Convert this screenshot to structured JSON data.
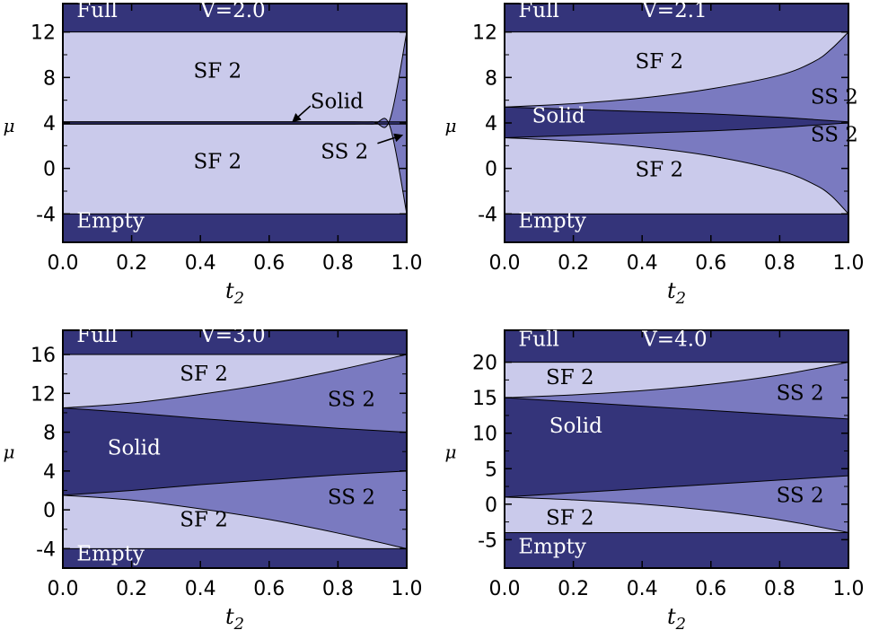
{
  "colors": {
    "dark": "#34347a",
    "medium": "#7a7ac0",
    "light": "#cacaeb",
    "white_text": "#ffffff",
    "black_text": "#000000"
  },
  "chart_data": [
    {
      "type": "area",
      "title": "V=2.0",
      "xlabel": "t2",
      "ylabel": "μ",
      "xlim": [
        0.0,
        1.0
      ],
      "ylim": [
        -6.5,
        14.5
      ],
      "xticks": [
        "0.0",
        "0.2",
        "0.4",
        "0.6",
        "0.8",
        "1.0"
      ],
      "yticks": [
        -4,
        0,
        4,
        8,
        12
      ],
      "labels": {
        "full": "Full",
        "empty": "Empty",
        "sf_upper": "SF 2",
        "sf_lower": "SF 2",
        "solid": "Solid",
        "ss": "SS 2"
      },
      "boundaries": {
        "empty_top": -4,
        "full_bottom": 12,
        "t2": [
          0.0,
          0.2,
          0.4,
          0.6,
          0.8,
          0.9,
          0.95,
          1.0
        ],
        "solid_top": [
          4.1,
          4.1,
          4.1,
          4.1,
          4.1,
          4.1,
          4.1,
          4.1
        ],
        "solid_bottom": [
          3.9,
          3.9,
          3.9,
          3.9,
          3.9,
          3.9,
          3.9,
          3.9
        ],
        "ss_upper_top": [
          4.1,
          4.1,
          4.1,
          4.1,
          4.1,
          4.1,
          4.2,
          12
        ],
        "ss_lower_bottom": [
          3.9,
          3.9,
          3.9,
          3.9,
          3.9,
          3.9,
          3.8,
          -4
        ]
      }
    },
    {
      "type": "area",
      "title": "V=2.1",
      "xlabel": "t2",
      "ylabel": "μ",
      "xlim": [
        0.0,
        1.0
      ],
      "ylim": [
        -6.5,
        14.5
      ],
      "xticks": [
        "0.0",
        "0.2",
        "0.4",
        "0.6",
        "0.8",
        "1.0"
      ],
      "yticks": [
        -4,
        0,
        4,
        8,
        12
      ],
      "labels": {
        "full": "Full",
        "empty": "Empty",
        "sf_upper": "SF 2",
        "sf_lower": "SF 2",
        "solid": "Solid",
        "ss_upper": "SS 2",
        "ss_lower": "SS 2"
      },
      "boundaries": {
        "empty_top": -4,
        "full_bottom": 12,
        "t2": [
          0.0,
          0.2,
          0.4,
          0.6,
          0.8,
          0.9,
          0.95,
          1.0
        ],
        "solid_top": [
          5.4,
          5.2,
          5.0,
          4.8,
          4.5,
          4.3,
          4.2,
          4.1
        ],
        "solid_bottom": [
          2.7,
          2.9,
          3.1,
          3.3,
          3.6,
          3.8,
          3.9,
          4.0
        ],
        "ss_upper_top": [
          5.4,
          5.7,
          6.2,
          7.0,
          8.2,
          9.4,
          10.5,
          12
        ],
        "ss_lower_bottom": [
          2.7,
          2.4,
          1.9,
          1.1,
          -0.2,
          -1.4,
          -2.4,
          -4
        ]
      }
    },
    {
      "type": "area",
      "title": "V=3.0",
      "xlabel": "t2",
      "ylabel": "μ",
      "xlim": [
        0.0,
        1.0
      ],
      "ylim": [
        -6,
        18.5
      ],
      "xticks": [
        "0.0",
        "0.2",
        "0.4",
        "0.6",
        "0.8",
        "1.0"
      ],
      "yticks": [
        -4,
        0,
        4,
        8,
        12,
        16
      ],
      "labels": {
        "full": "Full",
        "empty": "Empty",
        "sf_upper": "SF 2",
        "sf_lower": "SF 2",
        "solid": "Solid",
        "ss_upper": "SS 2",
        "ss_lower": "SS 2"
      },
      "boundaries": {
        "empty_top": -4,
        "full_bottom": 16,
        "t2": [
          0.0,
          0.2,
          0.4,
          0.6,
          0.8,
          1.0
        ],
        "solid_top": [
          10.5,
          10.0,
          9.4,
          8.9,
          8.4,
          8.0
        ],
        "solid_bottom": [
          1.5,
          2.0,
          2.6,
          3.1,
          3.6,
          4.0
        ],
        "ss_upper_top": [
          10.5,
          11.0,
          11.9,
          13.0,
          14.4,
          16.0
        ],
        "ss_lower_bottom": [
          1.5,
          1.0,
          0.1,
          -1.0,
          -2.4,
          -4.0
        ]
      }
    },
    {
      "type": "area",
      "title": "V=4.0",
      "xlabel": "t2",
      "ylabel": "μ",
      "xlim": [
        0.0,
        1.0
      ],
      "ylim": [
        -9,
        24.5
      ],
      "xticks": [
        "0.0",
        "0.2",
        "0.4",
        "0.6",
        "0.8",
        "1.0"
      ],
      "yticks": [
        -5,
        0,
        5,
        10,
        15,
        20
      ],
      "labels": {
        "full": "Full",
        "empty": "Empty",
        "sf_upper": "SF 2",
        "sf_lower": "SF 2",
        "solid": "Solid",
        "ss_upper": "SS 2",
        "ss_lower": "SS 2"
      },
      "boundaries": {
        "empty_top": -4,
        "full_bottom": 20,
        "t2": [
          0.0,
          0.2,
          0.4,
          0.6,
          0.8,
          1.0
        ],
        "solid_top": [
          15.0,
          14.4,
          13.8,
          13.2,
          12.6,
          12.0
        ],
        "solid_bottom": [
          1.0,
          1.6,
          2.2,
          2.8,
          3.4,
          4.0
        ],
        "ss_upper_top": [
          15.0,
          15.4,
          16.0,
          16.9,
          18.2,
          20.0
        ],
        "ss_lower_bottom": [
          1.0,
          0.6,
          0.0,
          -0.9,
          -2.2,
          -4.0
        ]
      }
    }
  ]
}
